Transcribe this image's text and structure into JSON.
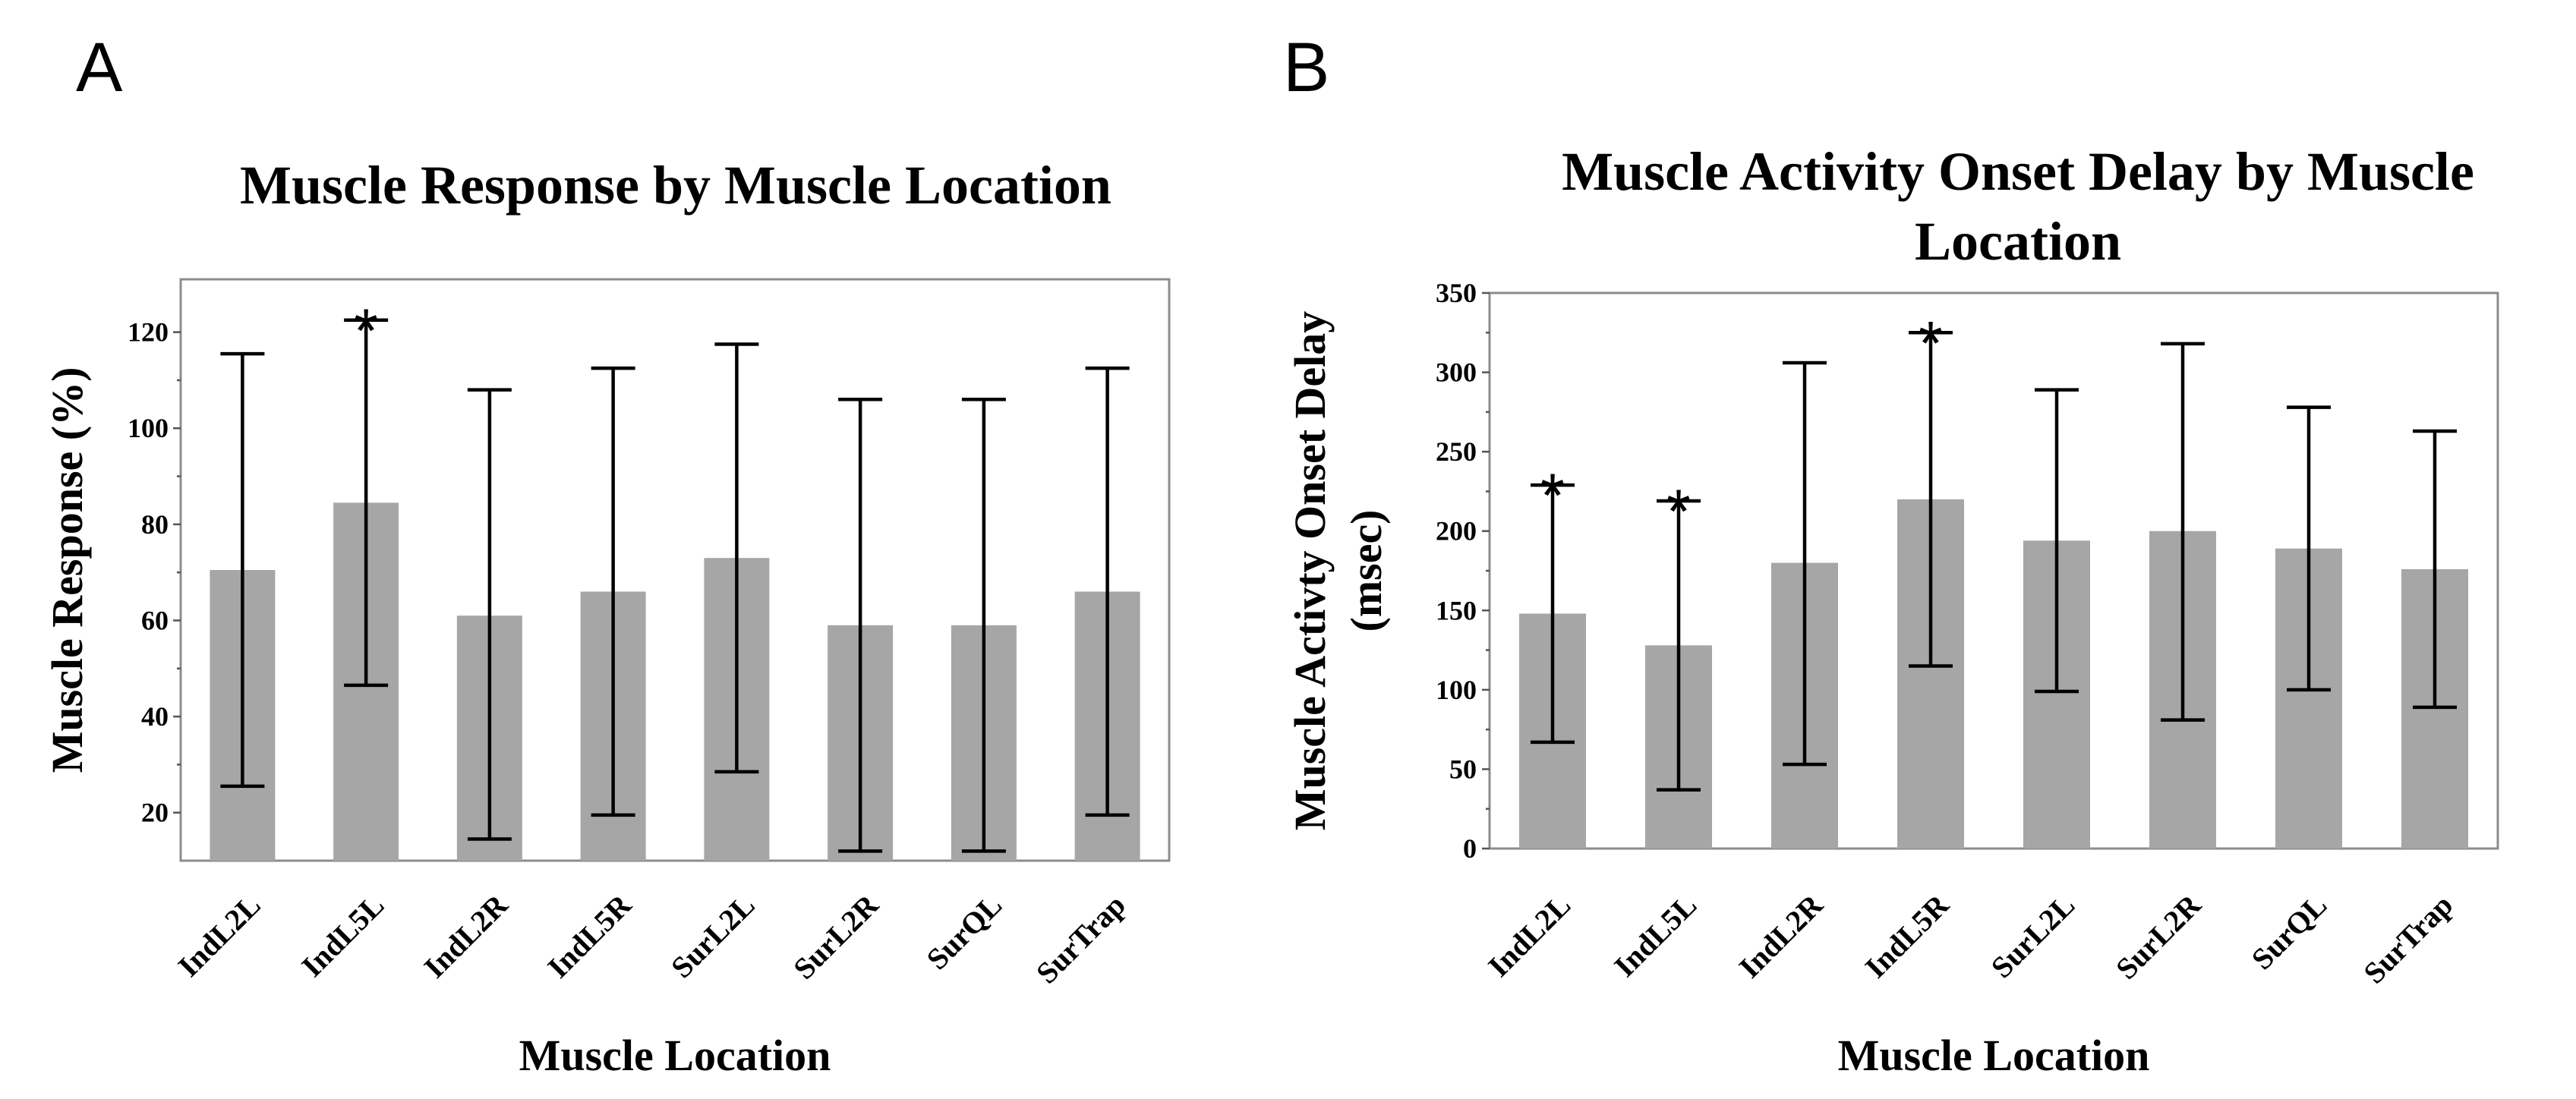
{
  "panels": {
    "a": {
      "letter": "A"
    },
    "b": {
      "letter": "B"
    }
  },
  "chart_data": [
    {
      "id": "a",
      "type": "bar",
      "title": "Muscle Response by Muscle Location",
      "title_lines": [
        "Muscle Response by Muscle Location"
      ],
      "xlabel": "Muscle Location",
      "ylabel": "Muscle Response (%)",
      "ylabel_lines": [
        "Muscle Response (%)"
      ],
      "ylim": [
        10,
        131
      ],
      "yticks": [
        20,
        40,
        60,
        80,
        100,
        120
      ],
      "grid": false,
      "categories": [
        "IndL2L",
        "IndL5L",
        "IndL2R",
        "IndL5R",
        "SurL2L",
        "SurL2R",
        "SurQL",
        "SurTrap"
      ],
      "values": [
        70.5,
        84.5,
        61,
        66,
        73,
        59,
        59,
        66
      ],
      "error_low": [
        25.5,
        46.5,
        14.5,
        19.5,
        28.5,
        12,
        12,
        19.5
      ],
      "error_high": [
        115.5,
        122.5,
        108,
        112.5,
        117.5,
        106,
        106,
        112.5
      ],
      "significant": [
        false,
        true,
        false,
        false,
        false,
        false,
        false,
        false
      ],
      "significance_marker": "*",
      "bar_color": "#a6a6a6"
    },
    {
      "id": "b",
      "type": "bar",
      "title": "Muscle Activity Onset Delay by Muscle Location",
      "title_lines": [
        "Muscle Activity Onset Delay by Muscle",
        "Location"
      ],
      "xlabel": "Muscle Location",
      "ylabel": "Muscle Activty Onset Delay (msec)",
      "ylabel_lines": [
        "Muscle Activty Onset Delay",
        "(msec)"
      ],
      "ylim": [
        0,
        350
      ],
      "yticks": [
        0,
        50,
        100,
        150,
        200,
        250,
        300,
        350
      ],
      "grid": false,
      "categories": [
        "IndL2L",
        "IndL5L",
        "IndL2R",
        "IndL5R",
        "SurL2L",
        "SurL2R",
        "SurQL",
        "SurTrap"
      ],
      "values": [
        148,
        128,
        180,
        220,
        194,
        200,
        189,
        176
      ],
      "error_low": [
        67,
        37,
        53,
        115,
        99,
        81,
        100,
        89
      ],
      "error_high": [
        229,
        219,
        306,
        325,
        289,
        318,
        278,
        263
      ],
      "significant": [
        true,
        true,
        false,
        true,
        false,
        false,
        false,
        false
      ],
      "significance_marker": "*",
      "bar_color": "#a6a6a6"
    }
  ]
}
